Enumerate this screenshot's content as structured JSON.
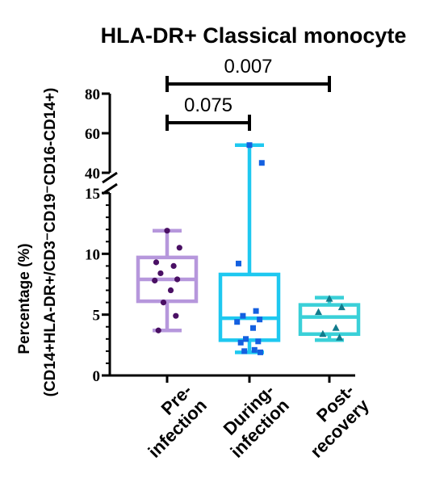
{
  "chart_data": {
    "type": "box",
    "title": "HLA-DR+ Classical monocyte",
    "ylabel_line1": "Percentage (%)",
    "ylabel_line2": "(CD14+HLA-DR+/CD3⁻CD19⁻CD16-CD14+)",
    "y_axis": {
      "broken": true,
      "lower_segment": {
        "range": [
          0,
          15
        ],
        "ticks": [
          "0",
          "5",
          "10",
          "15"
        ]
      },
      "upper_segment": {
        "range": [
          40,
          80
        ],
        "ticks": [
          "40",
          "60",
          "80"
        ]
      }
    },
    "categories": [
      {
        "label_line1": "Pre-",
        "label_line2": "infection"
      },
      {
        "label_line1": "During-",
        "label_line2": "infection"
      },
      {
        "label_line1": "Post-",
        "label_line2": "recovery"
      }
    ],
    "series": [
      {
        "category": "Pre-infection",
        "color": "#b697dc",
        "point_color": "#4a1064",
        "marker": "circle",
        "box": {
          "min": 3.7,
          "q1": 6.1,
          "median": 7.9,
          "q3": 9.7,
          "max": 11.9
        },
        "points": [
          11.9,
          10.5,
          9.3,
          9.0,
          8.4,
          7.9,
          7.8,
          7.0,
          6.0,
          4.9,
          3.7
        ]
      },
      {
        "category": "During-infection",
        "color": "#1ec8f0",
        "point_color": "#1460e0",
        "marker": "square",
        "box": {
          "min": 1.9,
          "q1": 2.9,
          "median": 4.7,
          "q3": 8.3,
          "max": 54
        },
        "points": [
          54,
          45,
          9.2,
          5.3,
          4.9,
          4.6,
          4.4,
          3.9,
          3.0,
          2.8,
          2.7,
          2.1,
          2.0,
          1.9
        ]
      },
      {
        "category": "Post-recovery",
        "color": "#3ad0d8",
        "point_color": "#117b8c",
        "marker": "triangle",
        "box": {
          "min": 2.9,
          "q1": 3.4,
          "median": 4.8,
          "q3": 5.8,
          "max": 6.4
        },
        "points": [
          6.3,
          5.6,
          5.2,
          3.9,
          3.4,
          3.1
        ]
      }
    ],
    "comparisons": [
      {
        "from": "Pre-infection",
        "to": "During-infection",
        "p_value": "0.075",
        "y": 60
      },
      {
        "from": "Pre-infection",
        "to": "Post-recovery",
        "p_value": "0.007",
        "y": 80
      }
    ]
  }
}
